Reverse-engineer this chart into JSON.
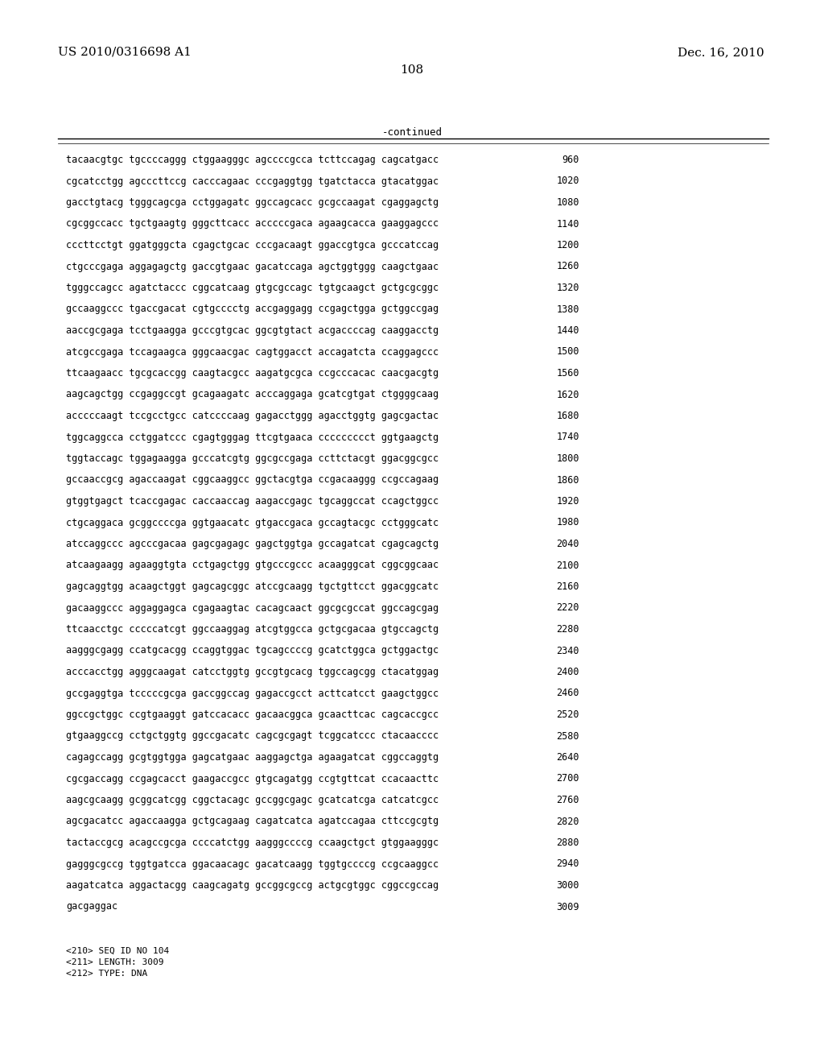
{
  "header_left": "US 2010/0316698 A1",
  "header_right": "Dec. 16, 2010",
  "page_number": "108",
  "continued_label": "-continued",
  "sequence_lines": [
    [
      "tacaacgtgc tgccccaggg ctggaagggc agccccgcca tcttccagag cagcatgacc",
      "960"
    ],
    [
      "cgcatcctgg agcccttccg cacccagaac cccgaggtgg tgatctacca gtacatggac",
      "1020"
    ],
    [
      "gacctgtacg tgggcagcga cctggagatc ggccagcacc gcgccaagat cgaggagctg",
      "1080"
    ],
    [
      "cgcggccacc tgctgaagtg gggcttcacc acccccgaca agaagcacca gaaggagccc",
      "1140"
    ],
    [
      "cccttcctgt ggatgggcta cgagctgcac cccgacaagt ggaccgtgca gcccatccag",
      "1200"
    ],
    [
      "ctgcccgaga aggagagctg gaccgtgaac gacatccaga agctggtggg caagctgaac",
      "1260"
    ],
    [
      "tgggccagcc agatctaccc cggcatcaag gtgcgccagc tgtgcaagct gctgcgcggc",
      "1320"
    ],
    [
      "gccaaggccc tgaccgacat cgtgcccctg accgaggagg ccgagctgga gctggccgag",
      "1380"
    ],
    [
      "aaccgcgaga tcctgaagga gcccgtgcac ggcgtgtact acgaccccag caaggacctg",
      "1440"
    ],
    [
      "atcgccgaga tccagaagca gggcaacgac cagtggacct accagatcta ccaggagccc",
      "1500"
    ],
    [
      "ttcaagaacc tgcgcaccgg caagtacgcc aagatgcgca ccgcccacac caacgacgtg",
      "1560"
    ],
    [
      "aagcagctgg ccgaggccgt gcagaagatc acccaggaga gcatcgtgat ctggggcaag",
      "1620"
    ],
    [
      "acccccaagt tccgcctgcc catccccaag gagacctggg agacctggtg gagcgactac",
      "1680"
    ],
    [
      "tggcaggcca cctggatccc cgagtgggag ttcgtgaaca ccccccccct ggtgaagctg",
      "1740"
    ],
    [
      "tggtaccagc tggagaagga gcccatcgtg ggcgccgaga ccttctacgt ggacggcgcc",
      "1800"
    ],
    [
      "gccaaccgcg agaccaagat cggcaaggcc ggctacgtga ccgacaaggg ccgccagaag",
      "1860"
    ],
    [
      "gtggtgagct tcaccgagac caccaaccag aagaccgagc tgcaggccat ccagctggcc",
      "1920"
    ],
    [
      "ctgcaggaca gcggccccga ggtgaacatc gtgaccgaca gccagtacgc cctgggcatc",
      "1980"
    ],
    [
      "atccaggccc agcccgacaa gagcgagagc gagctggtga gccagatcat cgagcagctg",
      "2040"
    ],
    [
      "atcaagaagg agaaggtgta cctgagctgg gtgcccgccc acaagggcat cggcggcaac",
      "2100"
    ],
    [
      "gagcaggtgg acaagctggt gagcagcggc atccgcaagg tgctgttcct ggacggcatc",
      "2160"
    ],
    [
      "gacaaggccc aggaggagca cgagaagtac cacagcaact ggcgcgccat ggccagcgag",
      "2220"
    ],
    [
      "ttcaacctgc cccccatcgt ggccaaggag atcgtggcca gctgcgacaa gtgccagctg",
      "2280"
    ],
    [
      "aagggcgagg ccatgcacgg ccaggtggac tgcagccccg gcatctggca gctggactgc",
      "2340"
    ],
    [
      "acccacctgg agggcaagat catcctggtg gccgtgcacg tggccagcgg ctacatggag",
      "2400"
    ],
    [
      "gccgaggtga tcccccgcga gaccggccag gagaccgcct acttcatcct gaagctggcc",
      "2460"
    ],
    [
      "ggccgctggc ccgtgaaggt gatccacacc gacaacggca gcaacttcac cagcaccgcc",
      "2520"
    ],
    [
      "gtgaaggccg cctgctggtg ggccgacatc cagcgcgagt tcggcatccc ctacaacccc",
      "2580"
    ],
    [
      "cagagccagg gcgtggtgga gagcatgaac aaggagctga agaagatcat cggccaggtg",
      "2640"
    ],
    [
      "cgcgaccagg ccgagcacct gaagaccgcc gtgcagatgg ccgtgttcat ccacaacttc",
      "2700"
    ],
    [
      "aagcgcaagg gcggcatcgg cggctacagc gccggcgagc gcatcatcga catcatcgcc",
      "2760"
    ],
    [
      "agcgacatcc agaccaagga gctgcagaag cagatcatca agatccagaa cttccgcgtg",
      "2820"
    ],
    [
      "tactaccgcg acagccgcga ccccatctgg aagggccccg ccaagctgct gtggaagggc",
      "2880"
    ],
    [
      "gagggcgccg tggtgatcca ggacaacagc gacatcaagg tggtgccccg ccgcaaggcc",
      "2940"
    ],
    [
      "aagatcatca aggactacgg caagcagatg gccggcgccg actgcgtggc cggccgccag",
      "3000"
    ],
    [
      "gacgaggac",
      "3009"
    ]
  ],
  "footer_lines": [
    "<210> SEQ ID NO 104",
    "<211> LENGTH: 3009",
    "<212> TYPE: DNA"
  ],
  "bg_color": "#ffffff",
  "text_color": "#000000",
  "font_size_header": 11,
  "font_size_body": 8.5,
  "font_size_page": 11,
  "font_size_continued": 9,
  "font_size_footer": 8
}
